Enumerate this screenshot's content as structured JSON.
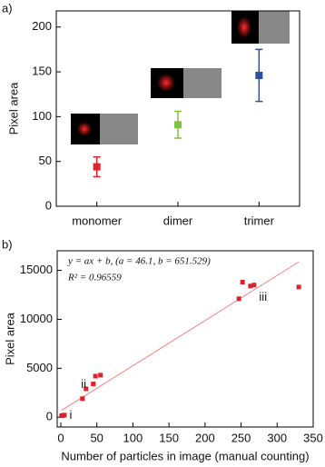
{
  "chart_data": [
    {
      "type": "errorbar",
      "panel_label": "a)",
      "y_label": "Pixel area",
      "categories": [
        "monomer",
        "dimer",
        "trimer"
      ],
      "series": [
        {
          "values": [
            44,
            91,
            146
          ],
          "errors": [
            11,
            15,
            29
          ],
          "colors": [
            "#e0202a",
            "#7dc242",
            "#2e4f9e"
          ]
        }
      ],
      "ylim": [
        0,
        218
      ],
      "yticks": [
        0,
        50,
        100,
        150,
        200
      ]
    },
    {
      "type": "scatter",
      "panel_label": "b)",
      "x_label": "Number of particles in image (manual counting)",
      "y_label": "Pixel area",
      "equation": "y = ax + b, (a = 46.1, b = 651.529)",
      "r_squared": "R² = 0.96559",
      "fit": {
        "a": 46.1,
        "b": 651.529,
        "color": "#f08080"
      },
      "annotations": [
        {
          "text": "i",
          "x": 12,
          "y": 150
        },
        {
          "text": "ii",
          "x": 28,
          "y": 3300
        },
        {
          "text": "iii",
          "x": 275,
          "y": 12200
        }
      ],
      "series": [
        {
          "color": "#e0202a",
          "x": [
            1,
            3,
            5,
            30,
            35,
            45,
            48,
            55,
            247,
            252,
            263,
            268,
            330
          ],
          "values": [
            150,
            180,
            220,
            1900,
            2900,
            3400,
            4200,
            4300,
            12100,
            13800,
            13400,
            13500,
            13300
          ]
        }
      ],
      "xlim": [
        -5,
        350
      ],
      "xticks": [
        0,
        50,
        100,
        150,
        200,
        250,
        300,
        350
      ],
      "ylim": [
        -1000,
        17000
      ],
      "yticks": [
        0,
        5000,
        10000,
        15000
      ]
    }
  ]
}
